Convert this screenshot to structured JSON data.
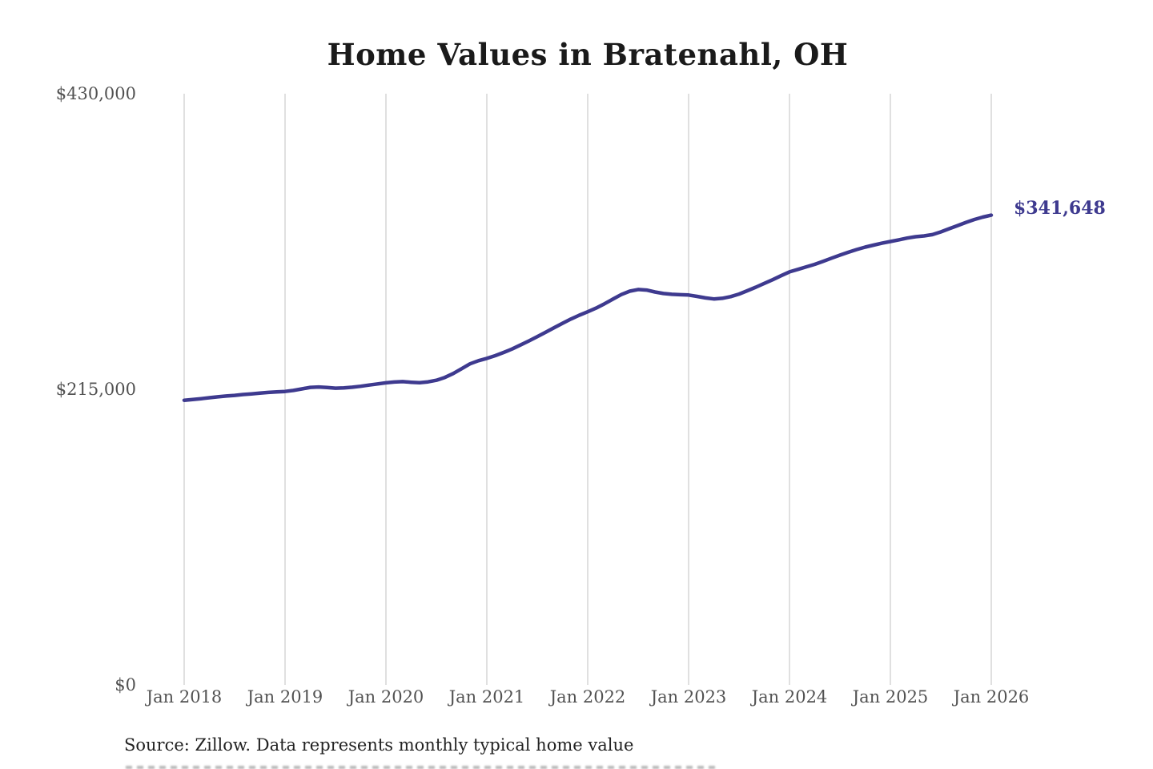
{
  "chart_data": {
    "type": "line",
    "title": "Home Values in Bratenahl, OH",
    "series_name": "Monthly typical home value",
    "source": "Source: Zillow. Data represents monthly typical home value",
    "end_label": "$341,648",
    "end_value": 341648,
    "ylim": [
      0,
      430000
    ],
    "grid": "vertical-only",
    "legend": "none",
    "y_ticks": [
      {
        "label": "$430,000",
        "value": 430000
      },
      {
        "label": "$215,000",
        "value": 215000
      },
      {
        "label": "$0",
        "value": 0
      }
    ],
    "x_tick_labels": [
      "Jan 2018",
      "Jan 2019",
      "Jan 2020",
      "Jan 2021",
      "Jan 2022",
      "Jan 2023",
      "Jan 2024",
      "Jan 2025",
      "Jan 2026"
    ],
    "x": [
      "2018-01",
      "2018-02",
      "2018-03",
      "2018-04",
      "2018-05",
      "2018-06",
      "2018-07",
      "2018-08",
      "2018-09",
      "2018-10",
      "2018-11",
      "2018-12",
      "2019-01",
      "2019-02",
      "2019-03",
      "2019-04",
      "2019-05",
      "2019-06",
      "2019-07",
      "2019-08",
      "2019-09",
      "2019-10",
      "2019-11",
      "2019-12",
      "2020-01",
      "2020-02",
      "2020-03",
      "2020-04",
      "2020-05",
      "2020-06",
      "2020-07",
      "2020-08",
      "2020-09",
      "2020-10",
      "2020-11",
      "2020-12",
      "2021-01",
      "2021-02",
      "2021-03",
      "2021-04",
      "2021-05",
      "2021-06",
      "2021-07",
      "2021-08",
      "2021-09",
      "2021-10",
      "2021-11",
      "2021-12",
      "2022-01",
      "2022-02",
      "2022-03",
      "2022-04",
      "2022-05",
      "2022-06",
      "2022-07",
      "2022-08",
      "2022-09",
      "2022-10",
      "2022-11",
      "2022-12",
      "2023-01",
      "2023-02",
      "2023-03",
      "2023-04",
      "2023-05",
      "2023-06",
      "2023-07",
      "2023-08",
      "2023-09",
      "2023-10",
      "2023-11",
      "2023-12",
      "2024-01",
      "2024-02",
      "2024-03",
      "2024-04",
      "2024-05",
      "2024-06",
      "2024-07",
      "2024-08",
      "2024-09",
      "2024-10",
      "2024-11",
      "2024-12",
      "2025-01",
      "2025-02",
      "2025-03",
      "2025-04",
      "2025-05",
      "2025-06",
      "2025-07",
      "2025-08",
      "2025-09",
      "2025-10",
      "2025-11",
      "2025-12",
      "2026-01"
    ],
    "values": [
      207000,
      207600,
      208200,
      208900,
      209500,
      210100,
      210600,
      211200,
      211700,
      212200,
      212700,
      213100,
      213400,
      214200,
      215300,
      216400,
      216700,
      216300,
      215800,
      216000,
      216500,
      217200,
      218100,
      218900,
      219700,
      220300,
      220600,
      220100,
      219800,
      220400,
      221600,
      223600,
      226500,
      230000,
      233500,
      235800,
      237500,
      239500,
      241800,
      244300,
      247200,
      250200,
      253300,
      256500,
      259800,
      263000,
      266100,
      268900,
      271400,
      274100,
      277200,
      280600,
      283900,
      286400,
      287600,
      287200,
      285800,
      284700,
      284100,
      283800,
      283600,
      282600,
      281500,
      280700,
      281200,
      282400,
      284300,
      286700,
      289300,
      292000,
      294700,
      297600,
      300400,
      302200,
      304100,
      305900,
      308100,
      310400,
      312600,
      314700,
      316700,
      318400,
      319900,
      321300,
      322500,
      323700,
      325000,
      326000,
      326600,
      327500,
      329500,
      331800,
      334100,
      336400,
      338500,
      340300,
      341648
    ],
    "colors": {
      "line": "#3e3a8f",
      "end_label": "#3e3a8f",
      "gridline": "#cbcbcb",
      "title": "#1a1a1a",
      "axis_labels": "#525252",
      "source_text": "#232323",
      "background": "#ffffff"
    }
  }
}
